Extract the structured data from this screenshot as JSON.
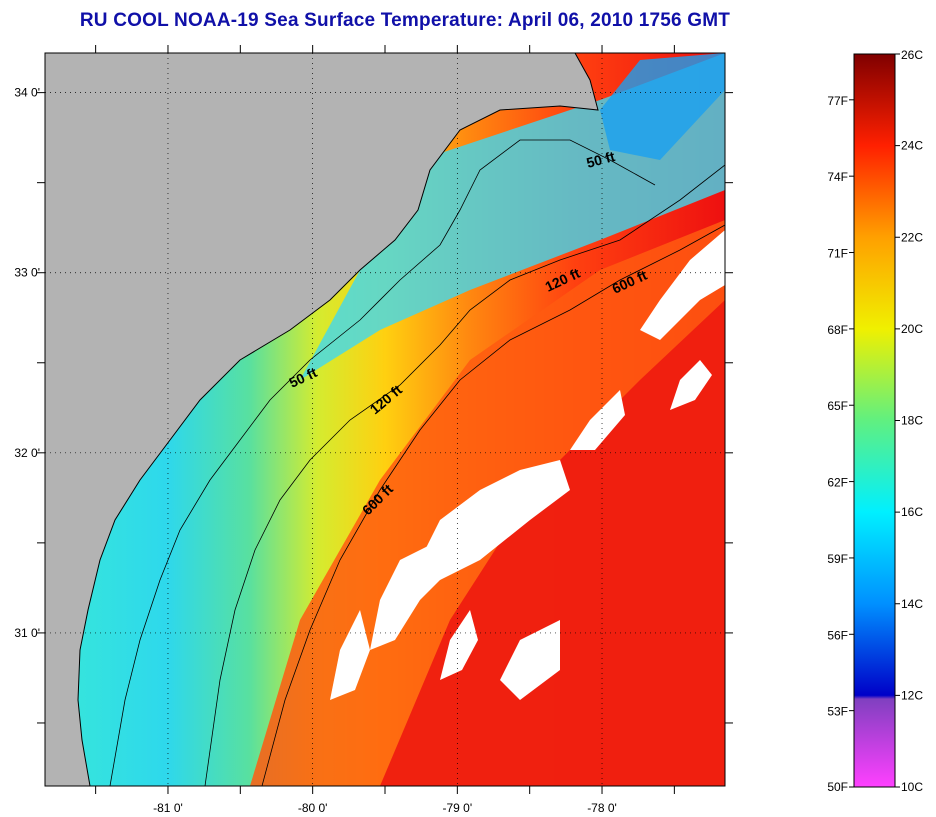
{
  "title": "RU COOL  NOAA-19  Sea Surface Temperature:  April 06, 2010 1756 GMT",
  "map": {
    "lon_range": [
      -81.85,
      -77.15
    ],
    "lat_range": [
      30.15,
      34.22
    ],
    "lon_ticks": [
      -81,
      -80,
      -79,
      -78
    ],
    "lon_labels": [
      "-81 0'",
      "-80 0'",
      "-79 0'",
      "-78 0'"
    ],
    "lat_ticks": [
      31,
      32,
      33,
      34
    ],
    "lat_labels": [
      "31 0'",
      "32 0'",
      "33 0'",
      "34 0'"
    ],
    "land_color": "#b3b3b3",
    "cloud_color": "#ffffff",
    "grid": "dotted"
  },
  "isobaths": [
    {
      "label": "50 ft",
      "label2": "50 ft"
    },
    {
      "label": "120 ft",
      "label2": "120 ft"
    },
    {
      "label": "600 ft",
      "label2": "600 ft"
    }
  ],
  "colorbar": {
    "celsius_labels": [
      "26C",
      "24C",
      "22C",
      "20C",
      "18C",
      "16C",
      "14C",
      "12C",
      "10C"
    ],
    "celsius_values": [
      26,
      24,
      22,
      20,
      18,
      16,
      14,
      12,
      10
    ],
    "fahrenheit_labels": [
      "77F",
      "74F",
      "71F",
      "68F",
      "65F",
      "62F",
      "59F",
      "56F",
      "53F",
      "50F"
    ],
    "fahrenheit_values": [
      77,
      74,
      71,
      68,
      65,
      62,
      59,
      56,
      53,
      50
    ],
    "range_c": [
      10,
      26
    ]
  }
}
